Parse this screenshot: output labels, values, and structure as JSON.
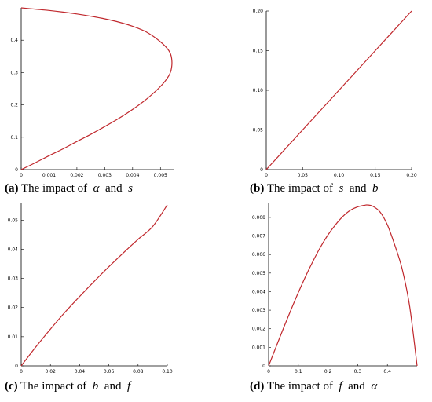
{
  "colors": {
    "curve": "#c0282d",
    "axis": "#000000"
  },
  "chart_data": [
    {
      "type": "line",
      "caption": {
        "tag": "(a)",
        "text": "The impact of",
        "sym1": "α",
        "and": "and",
        "sym2": "s"
      },
      "xlim": [
        0,
        0.0055
      ],
      "ylim": [
        0,
        0.5
      ],
      "xticks": [
        0,
        0.001,
        0.002,
        0.003,
        0.004,
        0.005
      ],
      "xtick_labels": [
        "0",
        "0.001",
        "0.002",
        "0.003",
        "0.004",
        "0.005"
      ],
      "yticks": [
        0,
        0.1,
        0.2,
        0.3,
        0.4
      ],
      "ytick_labels": [
        "0",
        "0.1",
        "0.2",
        "0.3",
        "0.4"
      ],
      "series": [
        {
          "x": [
            0,
            0.0005,
            0.001,
            0.0015,
            0.002,
            0.0025,
            0.003,
            0.0035,
            0.004,
            0.0045,
            0.005,
            0.0053,
            0.0054,
            0.0054,
            0.0053,
            0.005,
            0.0045,
            0.004,
            0.0035,
            0.003,
            0.0025,
            0.002,
            0.0015,
            0.001,
            0.0005,
            0
          ],
          "y": [
            0,
            0.021,
            0.043,
            0.064,
            0.087,
            0.109,
            0.133,
            0.158,
            0.186,
            0.218,
            0.257,
            0.29,
            0.315,
            0.345,
            0.368,
            0.395,
            0.425,
            0.443,
            0.456,
            0.466,
            0.474,
            0.481,
            0.487,
            0.492,
            0.496,
            0.5
          ]
        }
      ]
    },
    {
      "type": "line",
      "caption": {
        "tag": "(b)",
        "text": "The impact of",
        "sym1": "s",
        "and": "and",
        "sym2": "b"
      },
      "xlim": [
        0,
        0.2
      ],
      "ylim": [
        0,
        0.2
      ],
      "xticks": [
        0,
        0.05,
        0.1,
        0.15,
        0.2
      ],
      "xtick_labels": [
        "0",
        "0.05",
        "0.10",
        "0.15",
        "0.20"
      ],
      "yticks": [
        0,
        0.05,
        0.1,
        0.15,
        0.2
      ],
      "ytick_labels": [
        "0",
        "0.05",
        "0.10",
        "0.15",
        "0.20"
      ],
      "series": [
        {
          "x": [
            0,
            0.05,
            0.1,
            0.15,
            0.2
          ],
          "y": [
            0,
            0.05,
            0.1,
            0.15,
            0.2
          ]
        }
      ]
    },
    {
      "type": "line",
      "caption": {
        "tag": "(c)",
        "text": "The impact of",
        "sym1": "b",
        "and": "and",
        "sym2": "f"
      },
      "xlim": [
        0,
        0.1
      ],
      "ylim": [
        0,
        0.056
      ],
      "xticks": [
        0,
        0.02,
        0.04,
        0.06,
        0.08,
        0.1
      ],
      "xtick_labels": [
        "0",
        "0.02",
        "0.04",
        "0.06",
        "0.08",
        "0.10"
      ],
      "yticks": [
        0,
        0.01,
        0.02,
        0.03,
        0.04,
        0.05
      ],
      "ytick_labels": [
        "0",
        "0.01",
        "0.02",
        "0.03",
        "0.04",
        "0.05"
      ],
      "series": [
        {
          "x": [
            0,
            0.01,
            0.02,
            0.03,
            0.04,
            0.05,
            0.06,
            0.07,
            0.08,
            0.09,
            0.1
          ],
          "y": [
            0,
            0.0065,
            0.0126,
            0.0184,
            0.0238,
            0.029,
            0.034,
            0.0388,
            0.0434,
            0.0478,
            0.0552
          ]
        }
      ]
    },
    {
      "type": "line",
      "caption": {
        "tag": "(d)",
        "text": "The impact of",
        "sym1": "f",
        "and": "and",
        "sym2": "α"
      },
      "xlim": [
        0,
        0.5
      ],
      "ylim": [
        0,
        0.0088
      ],
      "xticks": [
        0,
        0.1,
        0.2,
        0.3,
        0.4
      ],
      "xtick_labels": [
        "0",
        "0.1",
        "0.2",
        "0.3",
        "0.4"
      ],
      "yticks": [
        0,
        0.001,
        0.002,
        0.003,
        0.004,
        0.005,
        0.006,
        0.007,
        0.008
      ],
      "ytick_labels": [
        "0",
        "0.001",
        "0.002",
        "0.003",
        "0.004",
        "0.005",
        "0.006",
        "0.007",
        "0.008"
      ],
      "series": [
        {
          "x": [
            0,
            0.025,
            0.05,
            0.075,
            0.1,
            0.125,
            0.15,
            0.175,
            0.2,
            0.225,
            0.25,
            0.275,
            0.3,
            0.325,
            0.3333,
            0.35,
            0.375,
            0.4,
            0.425,
            0.45,
            0.475,
            0.5
          ],
          "y": [
            0,
            0.00102,
            0.00203,
            0.00301,
            0.00395,
            0.00484,
            0.00566,
            0.00641,
            0.00706,
            0.0076,
            0.00805,
            0.00838,
            0.00857,
            0.00866,
            0.00867,
            0.00861,
            0.0083,
            0.0076,
            0.0065,
            0.0052,
            0.0032,
            0
          ]
        }
      ]
    }
  ]
}
